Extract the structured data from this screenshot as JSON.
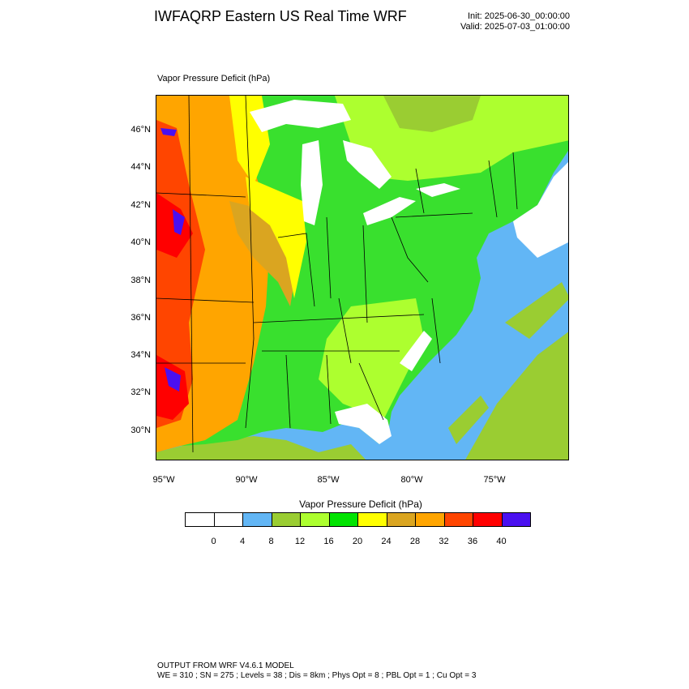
{
  "header": {
    "title": "IWFAQRP Eastern US Real Time WRF",
    "init": "Init: 2025-06-30_00:00:00",
    "valid": "Valid: 2025-07-03_01:00:00"
  },
  "map": {
    "field_label": "Vapor Pressure Deficit   (hPa)",
    "lat_labels": [
      "46°N",
      "44°N",
      "42°N",
      "40°N",
      "38°N",
      "36°N",
      "34°N",
      "32°N",
      "30°N"
    ],
    "lon_labels": [
      "95°W",
      "90°W",
      "85°W",
      "80°W",
      "75°W"
    ],
    "colors": {
      "water": "#62b6f5",
      "lake": "#ffffff",
      "land_default": "#39e02e"
    }
  },
  "legend": {
    "title": "Vapor Pressure Deficit  (hPa)",
    "colors": [
      "#ffffff",
      "#ffffff",
      "#62b6f5",
      "#9acd32",
      "#adff2f",
      "#00e400",
      "#ffff00",
      "#daa520",
      "#ffa500",
      "#ff4500",
      "#ff0000",
      "#4a10f0"
    ],
    "ticks": [
      "0",
      "4",
      "8",
      "12",
      "16",
      "20",
      "24",
      "28",
      "32",
      "36",
      "40"
    ]
  },
  "footer": {
    "line1": "OUTPUT FROM WRF V4.6.1 MODEL",
    "line2": "WE = 310 ; SN = 275 ; Levels = 38 ; Dis = 8km ; Phys Opt = 8 ; PBL Opt = 1 ; Cu Opt = 3"
  }
}
